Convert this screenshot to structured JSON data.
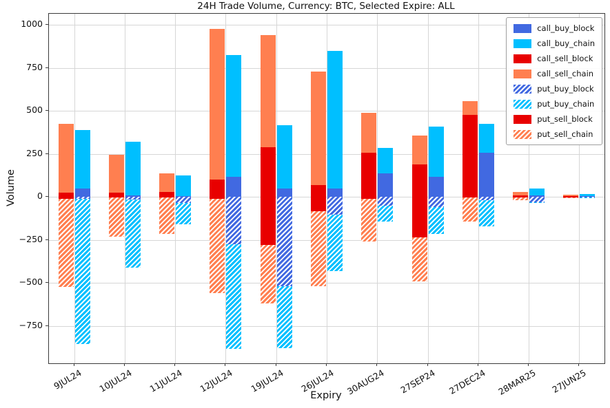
{
  "chart_data": {
    "type": "bar",
    "title": "24H Trade Volume, Currency: BTC, Selected Expire: ALL",
    "xlabel": "Expiry",
    "ylabel": "Volume",
    "ylim": [
      -968,
      1064
    ],
    "yticks": [
      -750,
      -500,
      -250,
      0,
      250,
      500,
      750,
      1000
    ],
    "grid": true,
    "legend_position": "upper right",
    "bar_layout": "two stacked bars per category: left = sell side, right = buy side; positive = calls, negative = puts",
    "categories": [
      "9JUL24",
      "10JUL24",
      "11JUL24",
      "12JUL24",
      "19JUL24",
      "26JUL24",
      "30AUG24",
      "27SEP24",
      "27DEC24",
      "28MAR25",
      "27JUN25"
    ],
    "series": [
      {
        "name": "call_buy_block",
        "color": "#4169e1",
        "hatch": false,
        "group": "buy",
        "values": [
          50,
          10,
          5,
          115,
          50,
          50,
          135,
          115,
          255,
          10,
          5
        ]
      },
      {
        "name": "call_buy_chain",
        "color": "#00bfff",
        "hatch": false,
        "group": "buy",
        "values": [
          340,
          310,
          120,
          710,
          365,
          800,
          150,
          295,
          170,
          40,
          10
        ]
      },
      {
        "name": "call_sell_block",
        "color": "#e80000",
        "hatch": false,
        "group": "sell",
        "values": [
          25,
          25,
          30,
          100,
          290,
          70,
          255,
          190,
          475,
          8,
          5
        ]
      },
      {
        "name": "call_sell_chain",
        "color": "#ff7f50",
        "hatch": false,
        "group": "sell",
        "values": [
          400,
          220,
          105,
          875,
          650,
          660,
          235,
          165,
          80,
          22,
          8
        ]
      },
      {
        "name": "put_buy_block",
        "color": "#4169e1",
        "hatch": true,
        "group": "buy",
        "values": [
          -10,
          -15,
          -35,
          -275,
          -520,
          -105,
          -50,
          -60,
          -20,
          -30,
          -2
        ]
      },
      {
        "name": "put_buy_chain",
        "color": "#00bfff",
        "hatch": true,
        "group": "buy",
        "values": [
          -845,
          -395,
          -125,
          -610,
          -360,
          -325,
          -95,
          -155,
          -150,
          -5,
          -3
        ]
      },
      {
        "name": "put_sell_block",
        "color": "#e80000",
        "hatch": false,
        "group": "sell",
        "values": [
          -10,
          -5,
          -5,
          -10,
          -280,
          -85,
          -10,
          -235,
          -5,
          -3,
          -2
        ]
      },
      {
        "name": "put_sell_chain",
        "color": "#ff7f50",
        "hatch": true,
        "group": "sell",
        "values": [
          -515,
          -225,
          -210,
          -550,
          -340,
          -435,
          -250,
          -255,
          -140,
          -15,
          -5
        ]
      }
    ]
  }
}
